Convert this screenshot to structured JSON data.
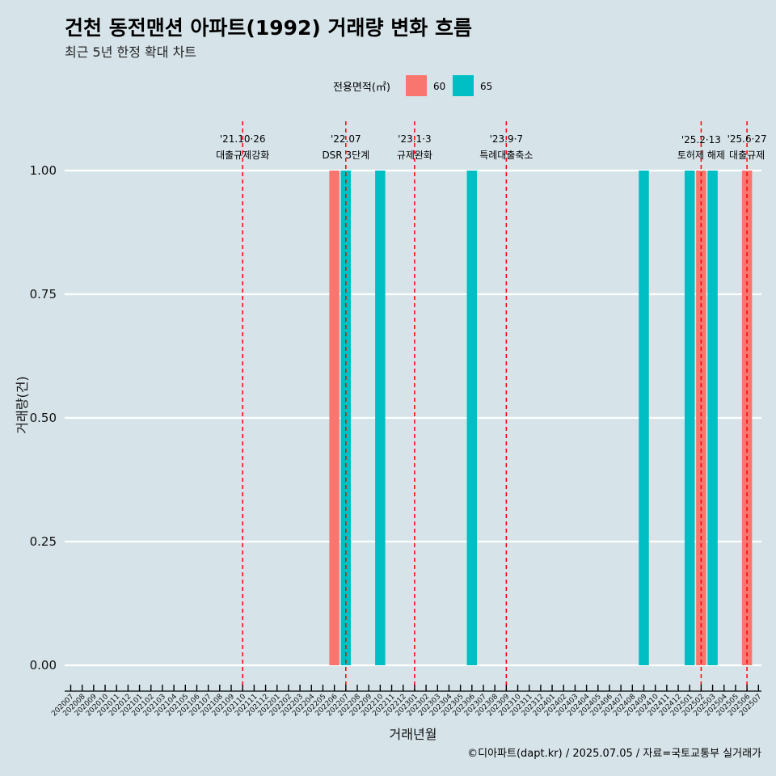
{
  "chart_data": {
    "type": "bar",
    "title": "건천 동전맨션 아파트(1992) 거래량 변화 흐름",
    "subtitle": "최근 5년 한정 확대 차트",
    "xlabel": "거래년월",
    "ylabel": "거래량(건)",
    "ylim": [
      0,
      1
    ],
    "y_ticks": [
      "0.00",
      "0.25",
      "0.50",
      "0.75",
      "1.00"
    ],
    "grid": "horizontal",
    "legend": {
      "title": "전용면적(㎡)",
      "placement": "top",
      "entries": [
        {
          "name": "60",
          "color": "#f8766d"
        },
        {
          "name": "65",
          "color": "#00bfc4"
        }
      ]
    },
    "categories": [
      "202007",
      "202008",
      "202009",
      "202010",
      "202011",
      "202012",
      "202101",
      "202102",
      "202103",
      "202104",
      "202105",
      "202106",
      "202107",
      "202108",
      "202109",
      "202110",
      "202111",
      "202112",
      "202201",
      "202202",
      "202203",
      "202204",
      "202205",
      "202206",
      "202207",
      "202208",
      "202209",
      "202210",
      "202211",
      "202212",
      "202301",
      "202302",
      "202303",
      "202304",
      "202305",
      "202306",
      "202307",
      "202308",
      "202309",
      "202310",
      "202311",
      "202312",
      "202401",
      "202402",
      "202403",
      "202404",
      "202405",
      "202406",
      "202407",
      "202408",
      "202409",
      "202410",
      "202411",
      "202412",
      "202501",
      "202502",
      "202503",
      "202504",
      "202505",
      "202506",
      "202507"
    ],
    "bars": [
      {
        "month": "202206",
        "series": "60",
        "value": 1
      },
      {
        "month": "202207",
        "series": "65",
        "value": 1
      },
      {
        "month": "202210",
        "series": "65",
        "value": 1
      },
      {
        "month": "202306",
        "series": "65",
        "value": 1
      },
      {
        "month": "202409",
        "series": "65",
        "value": 1
      },
      {
        "month": "202501",
        "series": "65",
        "value": 1
      },
      {
        "month": "202502",
        "series": "60",
        "value": 1
      },
      {
        "month": "202503",
        "series": "65",
        "value": 1
      },
      {
        "month": "202506",
        "series": "60",
        "value": 1
      }
    ],
    "events": [
      {
        "month": "202110",
        "date": "'21.10·26",
        "label": "대출규제강화",
        "line_color": "#ff0000"
      },
      {
        "month": "202207",
        "date": "'22.07",
        "label": "DSR 3단계",
        "line_color": "#ff0000"
      },
      {
        "month": "202301",
        "date": "'23.1·3",
        "label": "규제완화",
        "line_color": "#ff0000"
      },
      {
        "month": "202309",
        "date": "'23.9·7",
        "label": "특례대출축소",
        "line_color": "#ff0000"
      },
      {
        "month": "202502",
        "date": "'25.2·13",
        "label": "토허제 해제",
        "line_color": "#ff0000"
      },
      {
        "month": "202506",
        "date": "'25.6·27",
        "label": "대출규제",
        "line_color": "#ff0000"
      }
    ],
    "caption": "©디아파트(dapt.kr) / 2025.07.05 / 자료=국토교통부 실거래가"
  }
}
